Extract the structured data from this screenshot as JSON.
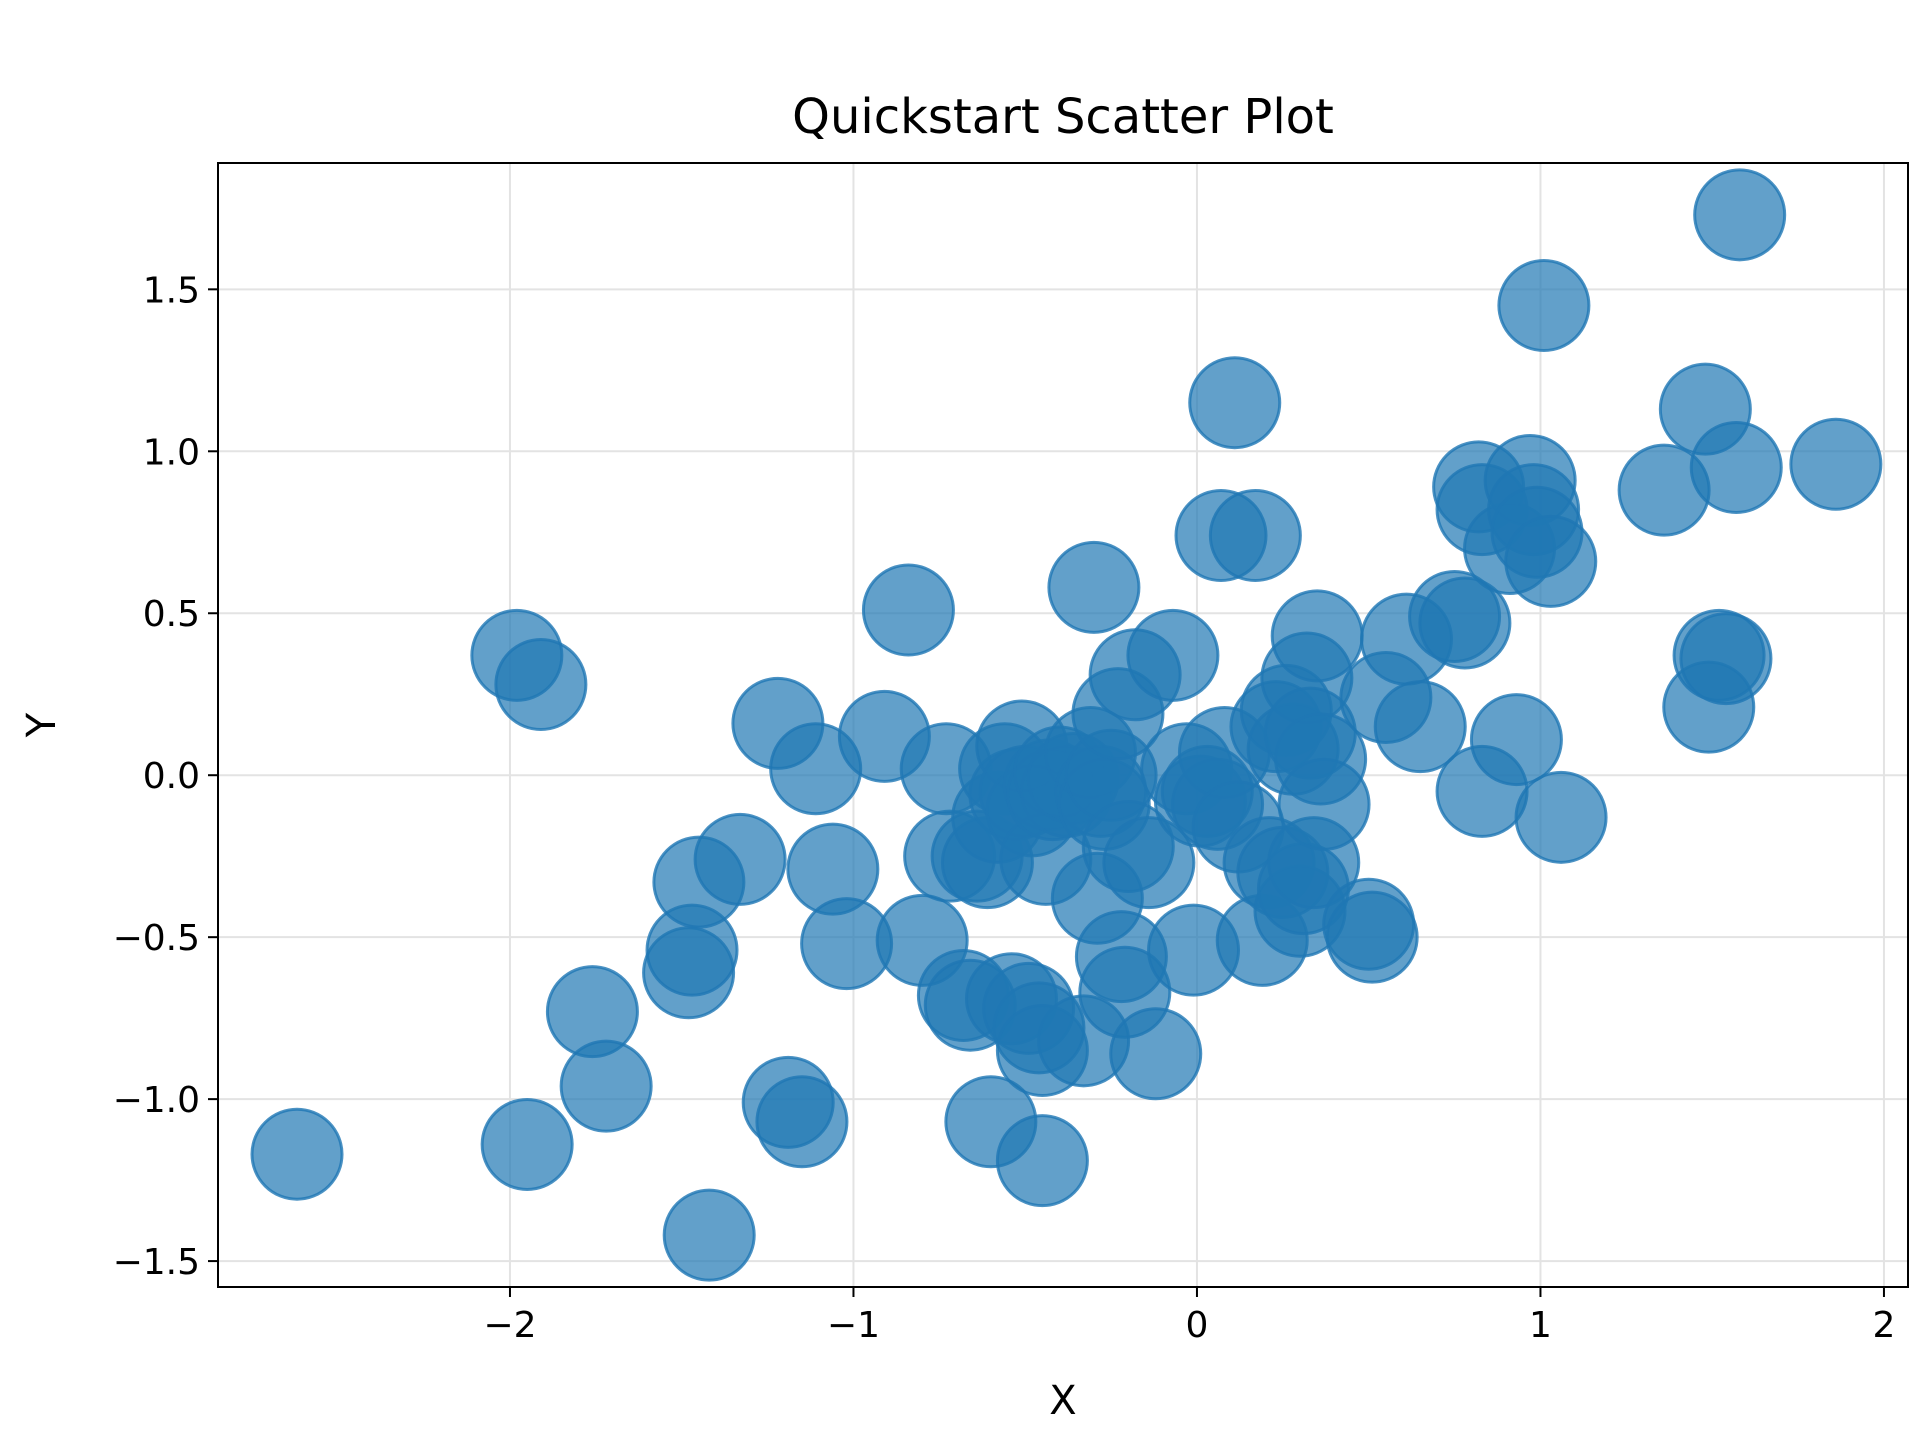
{
  "chart_data": {
    "type": "scatter",
    "title": "Quickstart Scatter Plot",
    "xlabel": "X",
    "ylabel": "Y",
    "xlim": [
      -2.85,
      2.07
    ],
    "ylim": [
      -1.58,
      1.89
    ],
    "xticks": [
      -2,
      -1,
      0,
      1,
      2
    ],
    "yticks": [
      -1.5,
      -1.0,
      -0.5,
      0.0,
      0.5,
      1.0,
      1.5
    ],
    "xtick_labels": [
      "−2",
      "−1",
      "0",
      "1",
      "2"
    ],
    "ytick_labels": [
      "−1.5",
      "−1.0",
      "−0.5",
      "0.0",
      "0.5",
      "1.0",
      "1.5"
    ],
    "grid": true,
    "marker_color": "#1f77b4",
    "marker_alpha": 0.7,
    "points": [
      {
        "x": -2.62,
        "y": -1.17
      },
      {
        "x": -1.98,
        "y": 0.37
      },
      {
        "x": -1.95,
        "y": -1.14
      },
      {
        "x": -1.91,
        "y": 0.28
      },
      {
        "x": -1.76,
        "y": -0.73
      },
      {
        "x": -1.72,
        "y": -0.96
      },
      {
        "x": -1.48,
        "y": -0.61
      },
      {
        "x": -1.47,
        "y": -0.54
      },
      {
        "x": -1.45,
        "y": -0.33
      },
      {
        "x": -1.42,
        "y": -1.42
      },
      {
        "x": -1.33,
        "y": -0.26
      },
      {
        "x": -1.22,
        "y": 0.16
      },
      {
        "x": -1.19,
        "y": -1.01
      },
      {
        "x": -1.15,
        "y": -1.07
      },
      {
        "x": -1.11,
        "y": 0.02
      },
      {
        "x": -1.06,
        "y": -0.29
      },
      {
        "x": -1.02,
        "y": -0.52
      },
      {
        "x": -0.91,
        "y": 0.12
      },
      {
        "x": -0.84,
        "y": 0.51
      },
      {
        "x": -0.8,
        "y": -0.51
      },
      {
        "x": -0.73,
        "y": 0.02
      },
      {
        "x": -0.72,
        "y": -0.25
      },
      {
        "x": -0.68,
        "y": -0.68
      },
      {
        "x": -0.66,
        "y": -0.71
      },
      {
        "x": -0.64,
        "y": -0.25
      },
      {
        "x": -0.61,
        "y": -0.27
      },
      {
        "x": -0.6,
        "y": -1.07
      },
      {
        "x": -0.58,
        "y": -0.13
      },
      {
        "x": -0.56,
        "y": 0.02
      },
      {
        "x": -0.54,
        "y": -0.69
      },
      {
        "x": -0.53,
        "y": -0.06
      },
      {
        "x": -0.51,
        "y": 0.09
      },
      {
        "x": -0.5,
        "y": -0.05
      },
      {
        "x": -0.49,
        "y": -0.72
      },
      {
        "x": -0.48,
        "y": -0.11
      },
      {
        "x": -0.46,
        "y": -0.78
      },
      {
        "x": -0.45,
        "y": -1.19
      },
      {
        "x": -0.45,
        "y": -0.85
      },
      {
        "x": -0.44,
        "y": -0.26
      },
      {
        "x": -0.43,
        "y": -0.03
      },
      {
        "x": -0.42,
        "y": -0.06
      },
      {
        "x": -0.4,
        "y": 0.01
      },
      {
        "x": -0.38,
        "y": -0.05
      },
      {
        "x": -0.36,
        "y": -0.01
      },
      {
        "x": -0.33,
        "y": -0.82
      },
      {
        "x": -0.31,
        "y": 0.07
      },
      {
        "x": -0.3,
        "y": 0.58
      },
      {
        "x": -0.29,
        "y": -0.38
      },
      {
        "x": -0.28,
        "y": -0.05
      },
      {
        "x": -0.27,
        "y": -0.09
      },
      {
        "x": -0.25,
        "y": 0.0
      },
      {
        "x": -0.23,
        "y": 0.19
      },
      {
        "x": -0.22,
        "y": -0.56
      },
      {
        "x": -0.21,
        "y": -0.67
      },
      {
        "x": -0.2,
        "y": -0.22
      },
      {
        "x": -0.18,
        "y": 0.31
      },
      {
        "x": -0.14,
        "y": -0.27
      },
      {
        "x": -0.12,
        "y": -0.86
      },
      {
        "x": -0.07,
        "y": 0.37
      },
      {
        "x": -0.03,
        "y": 0.02
      },
      {
        "x": -0.01,
        "y": -0.54
      },
      {
        "x": 0.01,
        "y": -0.08
      },
      {
        "x": 0.03,
        "y": -0.05
      },
      {
        "x": 0.06,
        "y": -0.09
      },
      {
        "x": 0.07,
        "y": 0.74
      },
      {
        "x": 0.08,
        "y": 0.07
      },
      {
        "x": 0.11,
        "y": 1.15
      },
      {
        "x": 0.12,
        "y": -0.16
      },
      {
        "x": 0.17,
        "y": 0.74
      },
      {
        "x": 0.19,
        "y": -0.51
      },
      {
        "x": 0.21,
        "y": -0.27
      },
      {
        "x": 0.23,
        "y": 0.15
      },
      {
        "x": 0.25,
        "y": -0.3
      },
      {
        "x": 0.26,
        "y": 0.2
      },
      {
        "x": 0.28,
        "y": 0.08
      },
      {
        "x": 0.3,
        "y": -0.42
      },
      {
        "x": 0.31,
        "y": -0.35
      },
      {
        "x": 0.32,
        "y": 0.3
      },
      {
        "x": 0.33,
        "y": 0.13
      },
      {
        "x": 0.34,
        "y": -0.27
      },
      {
        "x": 0.35,
        "y": 0.43
      },
      {
        "x": 0.36,
        "y": 0.05
      },
      {
        "x": 0.37,
        "y": -0.09
      },
      {
        "x": 0.5,
        "y": -0.46
      },
      {
        "x": 0.51,
        "y": -0.5
      },
      {
        "x": 0.55,
        "y": 0.24
      },
      {
        "x": 0.61,
        "y": 0.42
      },
      {
        "x": 0.65,
        "y": 0.15
      },
      {
        "x": 0.75,
        "y": 0.49
      },
      {
        "x": 0.78,
        "y": 0.47
      },
      {
        "x": 0.82,
        "y": 0.89
      },
      {
        "x": 0.83,
        "y": 0.82
      },
      {
        "x": 0.83,
        "y": -0.05
      },
      {
        "x": 0.91,
        "y": 0.7
      },
      {
        "x": 0.93,
        "y": 0.11
      },
      {
        "x": 0.97,
        "y": 0.91
      },
      {
        "x": 0.98,
        "y": 0.82
      },
      {
        "x": 0.99,
        "y": 0.75
      },
      {
        "x": 1.01,
        "y": 1.45
      },
      {
        "x": 1.03,
        "y": 0.66
      },
      {
        "x": 1.06,
        "y": -0.13
      },
      {
        "x": 1.36,
        "y": 0.88
      },
      {
        "x": 1.48,
        "y": 1.13
      },
      {
        "x": 1.49,
        "y": 0.21
      },
      {
        "x": 1.52,
        "y": 0.37
      },
      {
        "x": 1.54,
        "y": 0.36
      },
      {
        "x": 1.57,
        "y": 0.95
      },
      {
        "x": 1.58,
        "y": 1.73
      },
      {
        "x": 1.86,
        "y": 0.96
      }
    ]
  }
}
